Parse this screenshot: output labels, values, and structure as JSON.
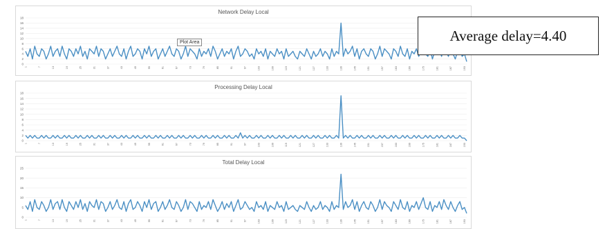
{
  "annotation": {
    "text": "Average delay=4.40",
    "plot_area_tooltip": "Plot Area"
  },
  "colors": {
    "line": "#4a8fc4",
    "grid": "#ececec",
    "tick_text": "#666666"
  },
  "chart_data": [
    {
      "type": "line",
      "title": "Network Delay Local",
      "ylim": [
        0,
        18
      ],
      "yticks": [
        0,
        2,
        4,
        6,
        8,
        10,
        12,
        14,
        16,
        18
      ],
      "x": {
        "start": 1,
        "end": 194,
        "step": 6
      },
      "series": [
        {
          "values": [
            5,
            3,
            6,
            2,
            7,
            4,
            3,
            6,
            5,
            2,
            4,
            7,
            3,
            5,
            6,
            3,
            7,
            4,
            2,
            6,
            5,
            3,
            6,
            4,
            7,
            3,
            5,
            2,
            6,
            5,
            4,
            7,
            3,
            6,
            5,
            2,
            4,
            6,
            3,
            5,
            7,
            4,
            3,
            6,
            2,
            5,
            7,
            3,
            4,
            6,
            5,
            2,
            6,
            4,
            7,
            3,
            5,
            6,
            2,
            4,
            6,
            3,
            5,
            7,
            4,
            3,
            6,
            5,
            2,
            4,
            7,
            3,
            6,
            5,
            4,
            2,
            6,
            3,
            5,
            4,
            6,
            3,
            7,
            5,
            2,
            4,
            6,
            3,
            5,
            4,
            6,
            2,
            5,
            7,
            3,
            4,
            6,
            5,
            3,
            4,
            2,
            6,
            4,
            5,
            3,
            6,
            2,
            5,
            4,
            3,
            6,
            4,
            5,
            2,
            6,
            3,
            4,
            5,
            3,
            2,
            5,
            4,
            3,
            6,
            4,
            2,
            5,
            3,
            4,
            6,
            3,
            5,
            4,
            2,
            6,
            3,
            5,
            4,
            16,
            3,
            6,
            4,
            5,
            7,
            3,
            6,
            2,
            5,
            6,
            4,
            3,
            6,
            5,
            2,
            4,
            7,
            3,
            6,
            5,
            4,
            2,
            6,
            5,
            3,
            7,
            4,
            3,
            6,
            2,
            5,
            4,
            6,
            3,
            5,
            8,
            4,
            3,
            6,
            2,
            5,
            4,
            6,
            3,
            7,
            5,
            3,
            6,
            4,
            2,
            5,
            6,
            3,
            4,
            1
          ]
        }
      ]
    },
    {
      "type": "line",
      "title": "Processing Delay Local",
      "ylim": [
        0,
        18
      ],
      "yticks": [
        0,
        2,
        4,
        6,
        8,
        10,
        12,
        14,
        16,
        18
      ],
      "x": {
        "start": 1,
        "end": 194,
        "step": 6
      },
      "series": [
        {
          "values": [
            2,
            1,
            2,
            1,
            2,
            1,
            1,
            2,
            1,
            2,
            1,
            1,
            2,
            1,
            2,
            1,
            1,
            2,
            1,
            2,
            1,
            1,
            2,
            1,
            2,
            1,
            1,
            2,
            1,
            2,
            1,
            1,
            2,
            1,
            2,
            1,
            1,
            2,
            1,
            2,
            1,
            1,
            2,
            1,
            2,
            1,
            1,
            2,
            1,
            2,
            1,
            1,
            2,
            1,
            2,
            1,
            1,
            2,
            1,
            2,
            1,
            1,
            2,
            1,
            2,
            1,
            1,
            2,
            1,
            2,
            1,
            1,
            2,
            1,
            2,
            1,
            1,
            2,
            1,
            2,
            1,
            1,
            2,
            1,
            2,
            1,
            1,
            2,
            1,
            2,
            1,
            1,
            2,
            1,
            3,
            1,
            2,
            1,
            2,
            1,
            1,
            2,
            1,
            2,
            1,
            1,
            2,
            1,
            2,
            1,
            1,
            2,
            1,
            2,
            1,
            1,
            2,
            1,
            2,
            1,
            1,
            2,
            1,
            2,
            1,
            1,
            2,
            1,
            2,
            1,
            1,
            2,
            1,
            2,
            1,
            1,
            2,
            1,
            17,
            1,
            2,
            1,
            2,
            1,
            1,
            2,
            1,
            2,
            1,
            1,
            2,
            1,
            2,
            1,
            1,
            2,
            1,
            2,
            1,
            1,
            2,
            1,
            2,
            1,
            1,
            2,
            1,
            2,
            1,
            1,
            2,
            1,
            2,
            1,
            1,
            2,
            1,
            2,
            1,
            1,
            2,
            1,
            2,
            1,
            1,
            2,
            1,
            2,
            1,
            1,
            2,
            1,
            1,
            0
          ]
        }
      ]
    },
    {
      "type": "line",
      "title": "Total Delay Local",
      "ylim": [
        0,
        25
      ],
      "yticks": [
        0,
        5,
        10,
        15,
        20,
        25
      ],
      "x": {
        "start": 1,
        "end": 194,
        "step": 6
      },
      "series": [
        {
          "values": [
            6,
            4,
            8,
            3,
            9,
            5,
            4,
            8,
            6,
            3,
            5,
            9,
            4,
            7,
            8,
            4,
            9,
            5,
            3,
            8,
            6,
            4,
            8,
            5,
            9,
            4,
            7,
            3,
            8,
            6,
            5,
            9,
            4,
            8,
            7,
            3,
            5,
            8,
            4,
            6,
            9,
            5,
            4,
            8,
            3,
            7,
            9,
            4,
            5,
            8,
            6,
            3,
            8,
            5,
            9,
            4,
            7,
            8,
            3,
            5,
            8,
            4,
            6,
            9,
            5,
            4,
            8,
            6,
            3,
            5,
            9,
            4,
            8,
            7,
            5,
            3,
            8,
            4,
            6,
            5,
            8,
            4,
            9,
            6,
            3,
            5,
            8,
            4,
            7,
            5,
            8,
            3,
            6,
            9,
            4,
            5,
            8,
            6,
            4,
            5,
            3,
            8,
            5,
            6,
            4,
            8,
            3,
            6,
            5,
            4,
            8,
            5,
            6,
            3,
            8,
            4,
            5,
            6,
            4,
            3,
            6,
            5,
            4,
            8,
            5,
            3,
            6,
            4,
            5,
            8,
            4,
            6,
            5,
            3,
            8,
            4,
            6,
            5,
            22,
            4,
            8,
            5,
            6,
            9,
            4,
            8,
            3,
            6,
            8,
            5,
            4,
            8,
            6,
            3,
            5,
            9,
            4,
            8,
            6,
            5,
            3,
            8,
            6,
            4,
            9,
            5,
            4,
            8,
            3,
            6,
            5,
            8,
            4,
            7,
            10,
            5,
            4,
            8,
            3,
            6,
            5,
            8,
            4,
            9,
            6,
            4,
            8,
            5,
            3,
            6,
            8,
            4,
            5,
            2
          ]
        }
      ]
    }
  ]
}
